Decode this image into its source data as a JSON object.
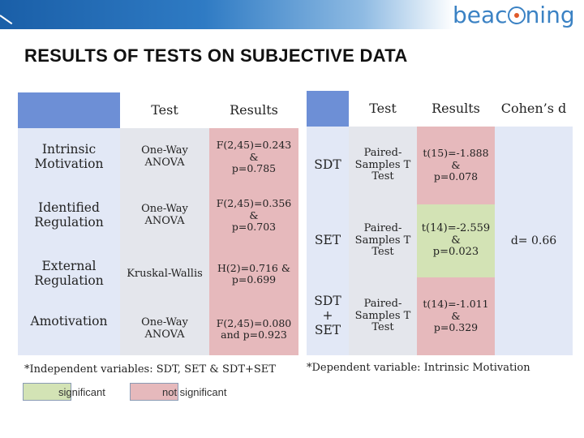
{
  "logo_text": "beac ning",
  "title": "RESULTS OF TESTS ON SUBJECTIVE DATA",
  "left_table": {
    "headers": {
      "test": "Test",
      "results": "Results"
    },
    "rows": [
      {
        "label": "Intrinsic Motivation",
        "test": "One-Way ANOVA",
        "results": "F(2,45)=0.243\n&\np=0.785",
        "significance": "not significant"
      },
      {
        "label": "Identified Regulation",
        "test": "One-Way ANOVA",
        "results": "F(2,45)=0.356\n&\np=0.703",
        "significance": "not significant"
      },
      {
        "label": "External Regulation",
        "test": "Kruskal-Wallis",
        "results": "H(2)=0.716 &\np=0.699",
        "significance": "not significant"
      },
      {
        "label": "Amotivation",
        "test": "One-Way ANOVA",
        "results": "F(2,45)=0.080\nand p=0.923",
        "significance": "not significant"
      }
    ],
    "note": "*Independent variables: SDT, SET & SDT+SET"
  },
  "right_table": {
    "headers": {
      "test": "Test",
      "results": "Results",
      "cohens_d": "Cohen’s d"
    },
    "rows": [
      {
        "label": "SDT",
        "test": "Paired-\nSamples T\nTest",
        "results": "t(15)=-1.888\n&\np=0.078",
        "significance": "not significant"
      },
      {
        "label": "SET",
        "test": "Paired-\nSamples T\nTest",
        "results": "t(14)=-2.559\n&\np=0.023",
        "significance": "significant"
      },
      {
        "label": "SDT\n+\nSET",
        "test": "Paired-\nSamples T\nTest",
        "results": "t(14)=-1.011\n&\np=0.329",
        "significance": "not significant"
      }
    ],
    "cohens_d_value": "d= 0.66",
    "note": "*Dependent variable: Intrinsic Motivation"
  },
  "legend": {
    "significant": {
      "label": "significant",
      "color": "#d3e3b5"
    },
    "not_significant": {
      "label": "not significant",
      "color": "#e6b9bc"
    }
  },
  "colors": {
    "header_blue": "#6d8fd6",
    "row_label": "#dfe7f6",
    "test_cell": "#e4e6ec",
    "banner": "#1a5fa8"
  }
}
